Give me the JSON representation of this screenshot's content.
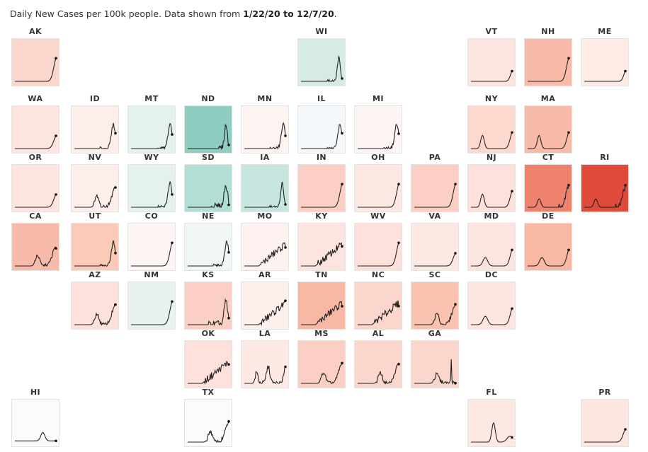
{
  "header": {
    "text": "Daily New Cases per 100k people. Data shown from ",
    "range": "1/22/20 to 12/7/20",
    "period": "."
  },
  "chart_data": {
    "type": "line",
    "title": "Daily New Cases per 100k people. Data shown from 1/22/20 to 12/7/20.",
    "xlabel": "",
    "ylabel": "",
    "x_range": [
      "1/22/20",
      "12/7/20"
    ],
    "grid": false,
    "layout": "us-state tile grid map",
    "states": [
      {
        "abbr": "AK",
        "row": 0,
        "col": 0,
        "color": "#fbd6cc",
        "shape": "late"
      },
      {
        "abbr": "WI",
        "row": 0,
        "col": 5,
        "color": "#d6ebe6",
        "shape": "spikeRecede"
      },
      {
        "abbr": "VT",
        "row": 0,
        "col": 8,
        "color": "#fde4de",
        "shape": "tinyLate"
      },
      {
        "abbr": "NH",
        "row": 0,
        "col": 9,
        "color": "#f9bba9",
        "shape": "late"
      },
      {
        "abbr": "ME",
        "row": 0,
        "col": 10,
        "color": "#fdebe6",
        "shape": "tinyLate"
      },
      {
        "abbr": "WA",
        "row": 1,
        "col": 0,
        "color": "#fde4de",
        "shape": "moderateLate"
      },
      {
        "abbr": "ID",
        "row": 1,
        "col": 1,
        "color": "#fdeeea",
        "shape": "midwestWave"
      },
      {
        "abbr": "MT",
        "row": 1,
        "col": 2,
        "color": "#e5f1ee",
        "shape": "midwestWave"
      },
      {
        "abbr": "ND",
        "row": 1,
        "col": 3,
        "color": "#8fcdc1",
        "shape": "bigSpike"
      },
      {
        "abbr": "MN",
        "row": 1,
        "col": 4,
        "color": "#fdf4f2",
        "shape": "midwestWave"
      },
      {
        "abbr": "IL",
        "row": 1,
        "col": 5,
        "color": "#f5f8fb",
        "shape": "midwestWave"
      },
      {
        "abbr": "MI",
        "row": 1,
        "col": 6,
        "color": "#fdf5f3",
        "shape": "midwestWave"
      },
      {
        "abbr": "NY",
        "row": 1,
        "col": 8,
        "color": "#fcd9cf",
        "shape": "springFall"
      },
      {
        "abbr": "MA",
        "row": 1,
        "col": 9,
        "color": "#f9bba9",
        "shape": "springFall"
      },
      {
        "abbr": "OR",
        "row": 2,
        "col": 0,
        "color": "#fde4de",
        "shape": "moderateLate"
      },
      {
        "abbr": "NV",
        "row": 2,
        "col": 1,
        "color": "#fdeeea",
        "shape": "summerFall"
      },
      {
        "abbr": "WY",
        "row": 2,
        "col": 2,
        "color": "#e5f1ee",
        "shape": "midwestWave"
      },
      {
        "abbr": "SD",
        "row": 2,
        "col": 3,
        "color": "#b3ded5",
        "shape": "noisySpike"
      },
      {
        "abbr": "IA",
        "row": 2,
        "col": 4,
        "color": "#c7e6df",
        "shape": "spikeRecede"
      },
      {
        "abbr": "IN",
        "row": 2,
        "col": 5,
        "color": "#fbcfc3",
        "shape": "late"
      },
      {
        "abbr": "OH",
        "row": 2,
        "col": 6,
        "color": "#fde9e4",
        "shape": "late"
      },
      {
        "abbr": "PA",
        "row": 2,
        "col": 7,
        "color": "#fbcfc3",
        "shape": "late"
      },
      {
        "abbr": "NJ",
        "row": 2,
        "col": 8,
        "color": "#fde1da",
        "shape": "springFall"
      },
      {
        "abbr": "CT",
        "row": 2,
        "col": 9,
        "color": "#ef826c",
        "shape": "springFallNoisy"
      },
      {
        "abbr": "RI",
        "row": 2,
        "col": 10,
        "color": "#de4b3a",
        "shape": "springFallNoisy"
      },
      {
        "abbr": "CA",
        "row": 3,
        "col": 0,
        "color": "#f9bba9",
        "shape": "summerFall"
      },
      {
        "abbr": "UT",
        "row": 3,
        "col": 1,
        "color": "#fbcab9",
        "shape": "midwestWave"
      },
      {
        "abbr": "CO",
        "row": 3,
        "col": 2,
        "color": "#fdf6f4",
        "shape": "late"
      },
      {
        "abbr": "NE",
        "row": 3,
        "col": 3,
        "color": "#f0f6f5",
        "shape": "midwestWave"
      },
      {
        "abbr": "MO",
        "row": 3,
        "col": 4,
        "color": "#fdf2ef",
        "shape": "noisyRise"
      },
      {
        "abbr": "KY",
        "row": 3,
        "col": 5,
        "color": "#fde4de",
        "shape": "noisyRise"
      },
      {
        "abbr": "WV",
        "row": 3,
        "col": 6,
        "color": "#fde1da",
        "shape": "late"
      },
      {
        "abbr": "VA",
        "row": 3,
        "col": 7,
        "color": "#fde9e4",
        "shape": "moderateLate"
      },
      {
        "abbr": "MD",
        "row": 3,
        "col": 8,
        "color": "#fde4de",
        "shape": "springSmall"
      },
      {
        "abbr": "DE",
        "row": 3,
        "col": 9,
        "color": "#f8b8a4",
        "shape": "springSmall"
      },
      {
        "abbr": "AZ",
        "row": 4,
        "col": 1,
        "color": "#fde1da",
        "shape": "summerFall"
      },
      {
        "abbr": "NM",
        "row": 4,
        "col": 2,
        "color": "#e8f3f0",
        "shape": "late"
      },
      {
        "abbr": "KS",
        "row": 4,
        "col": 3,
        "color": "#fbcfc3",
        "shape": "noisySpike"
      },
      {
        "abbr": "AR",
        "row": 4,
        "col": 4,
        "color": "#fdf0ec",
        "shape": "noisyRise"
      },
      {
        "abbr": "TN",
        "row": 4,
        "col": 5,
        "color": "#f8b8a4",
        "shape": "noisyRise"
      },
      {
        "abbr": "NC",
        "row": 4,
        "col": 6,
        "color": "#fbd6cc",
        "shape": "noisyRise"
      },
      {
        "abbr": "SC",
        "row": 4,
        "col": 7,
        "color": "#f9c2b1",
        "shape": "summerFall"
      },
      {
        "abbr": "DC",
        "row": 4,
        "col": 8,
        "color": "#fde6e0",
        "shape": "springSmall"
      },
      {
        "abbr": "OK",
        "row": 5,
        "col": 3,
        "color": "#fde1da",
        "shape": "noisyRise"
      },
      {
        "abbr": "LA",
        "row": 5,
        "col": 4,
        "color": "#fdeae5",
        "shape": "doubleWave"
      },
      {
        "abbr": "MS",
        "row": 5,
        "col": 5,
        "color": "#fbcfc3",
        "shape": "summerFall"
      },
      {
        "abbr": "AL",
        "row": 5,
        "col": 6,
        "color": "#fbd6cc",
        "shape": "summerFall"
      },
      {
        "abbr": "GA",
        "row": 5,
        "col": 7,
        "color": "#fbd6cc",
        "shape": "summerSpike"
      },
      {
        "abbr": "HI",
        "row": 6,
        "col": 0,
        "color": "#fdfbfa",
        "shape": "flatBump"
      },
      {
        "abbr": "TX",
        "row": 6,
        "col": 3,
        "color": "#fdfbfa",
        "shape": "summerFall"
      },
      {
        "abbr": "FL",
        "row": 6,
        "col": 8,
        "color": "#fde9e4",
        "shape": "summerPeak"
      },
      {
        "abbr": "PR",
        "row": 6,
        "col": 10,
        "color": "#fde6e0",
        "shape": "moderateLate"
      }
    ]
  }
}
